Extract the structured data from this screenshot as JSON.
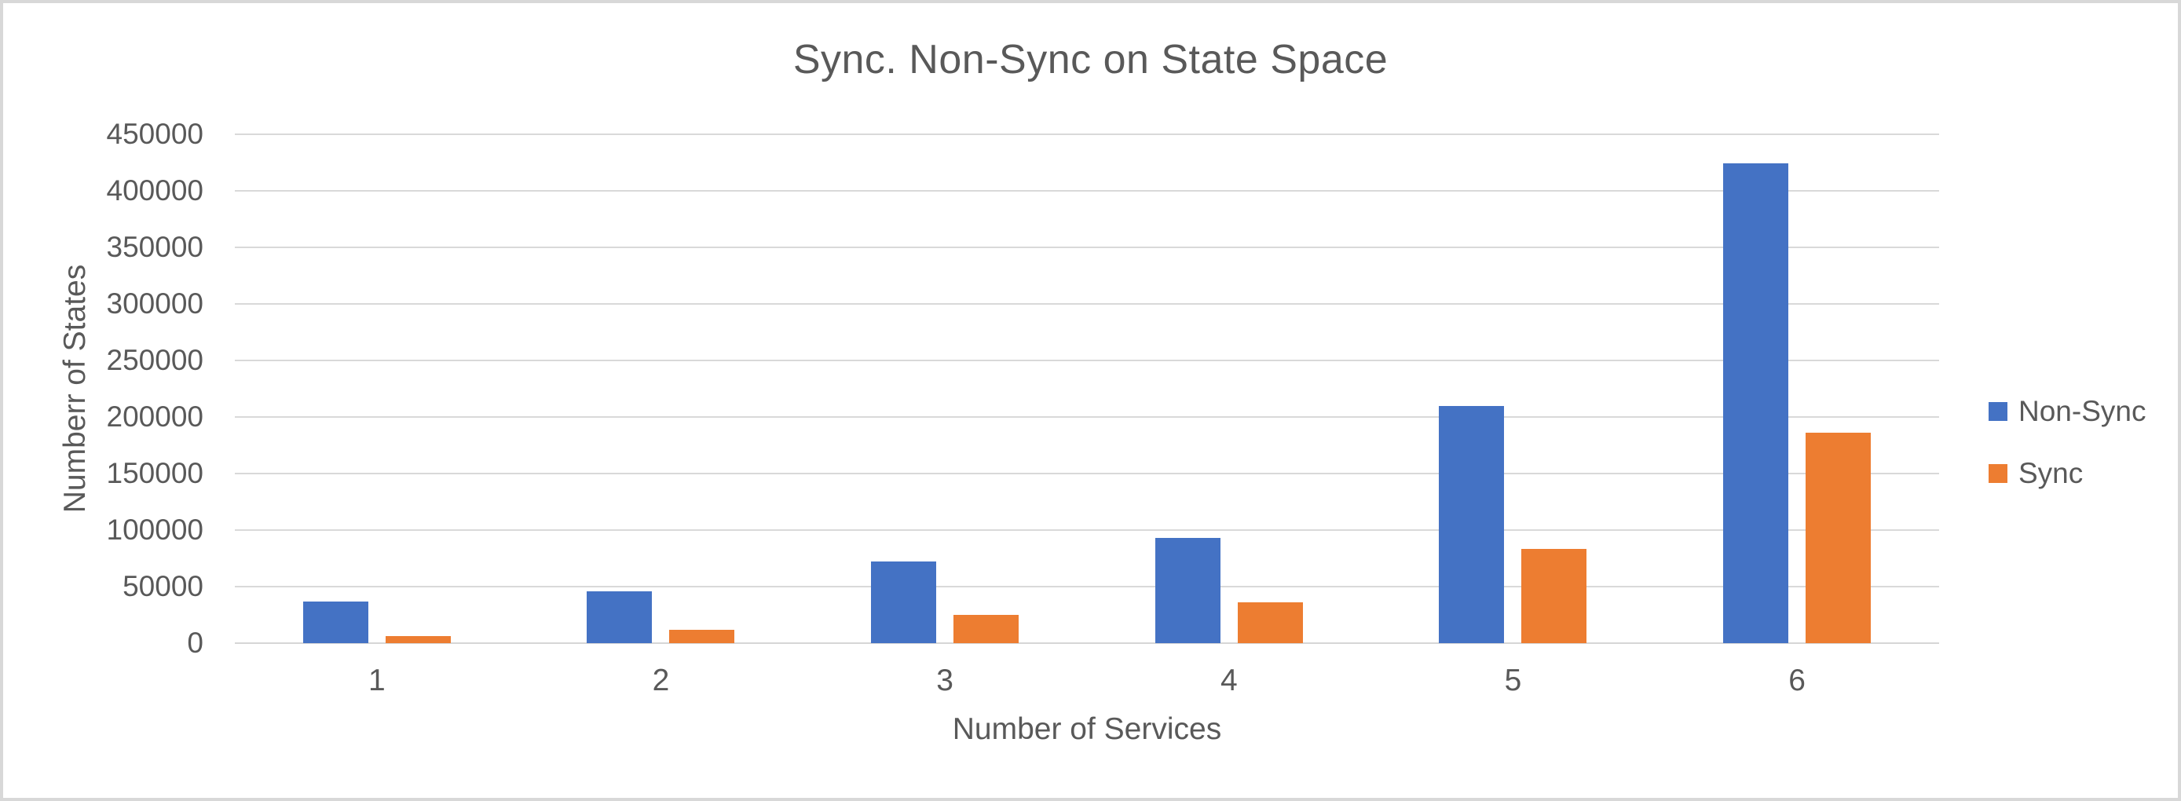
{
  "chart_data": {
    "type": "bar",
    "title": "Sync. Non-Sync on State Space",
    "xlabel": "Number of Services",
    "ylabel": "Numberr of States",
    "categories": [
      "1",
      "2",
      "3",
      "4",
      "5",
      "6"
    ],
    "series": [
      {
        "name": "Non-Sync",
        "color": "#4472C4",
        "values": [
          37000,
          46000,
          72000,
          93000,
          210000,
          424000
        ]
      },
      {
        "name": "Sync",
        "color": "#ED7D31",
        "values": [
          6000,
          12000,
          25000,
          36000,
          83000,
          186000
        ]
      }
    ],
    "ylim": [
      0,
      450000
    ],
    "ytick_step": 50000,
    "ytick_labels": [
      "0",
      "50000",
      "100000",
      "150000",
      "200000",
      "250000",
      "300000",
      "350000",
      "400000",
      "450000"
    ],
    "grid": true,
    "legend_position": "right",
    "legend": [
      "Non-Sync",
      "Sync"
    ]
  },
  "colors": {
    "text": "#595959",
    "gridline": "#D9D9D9",
    "frame_border": "#D8D8D8",
    "background": "#FFFFFF",
    "non_sync": "#4472C4",
    "sync": "#ED7D31"
  }
}
